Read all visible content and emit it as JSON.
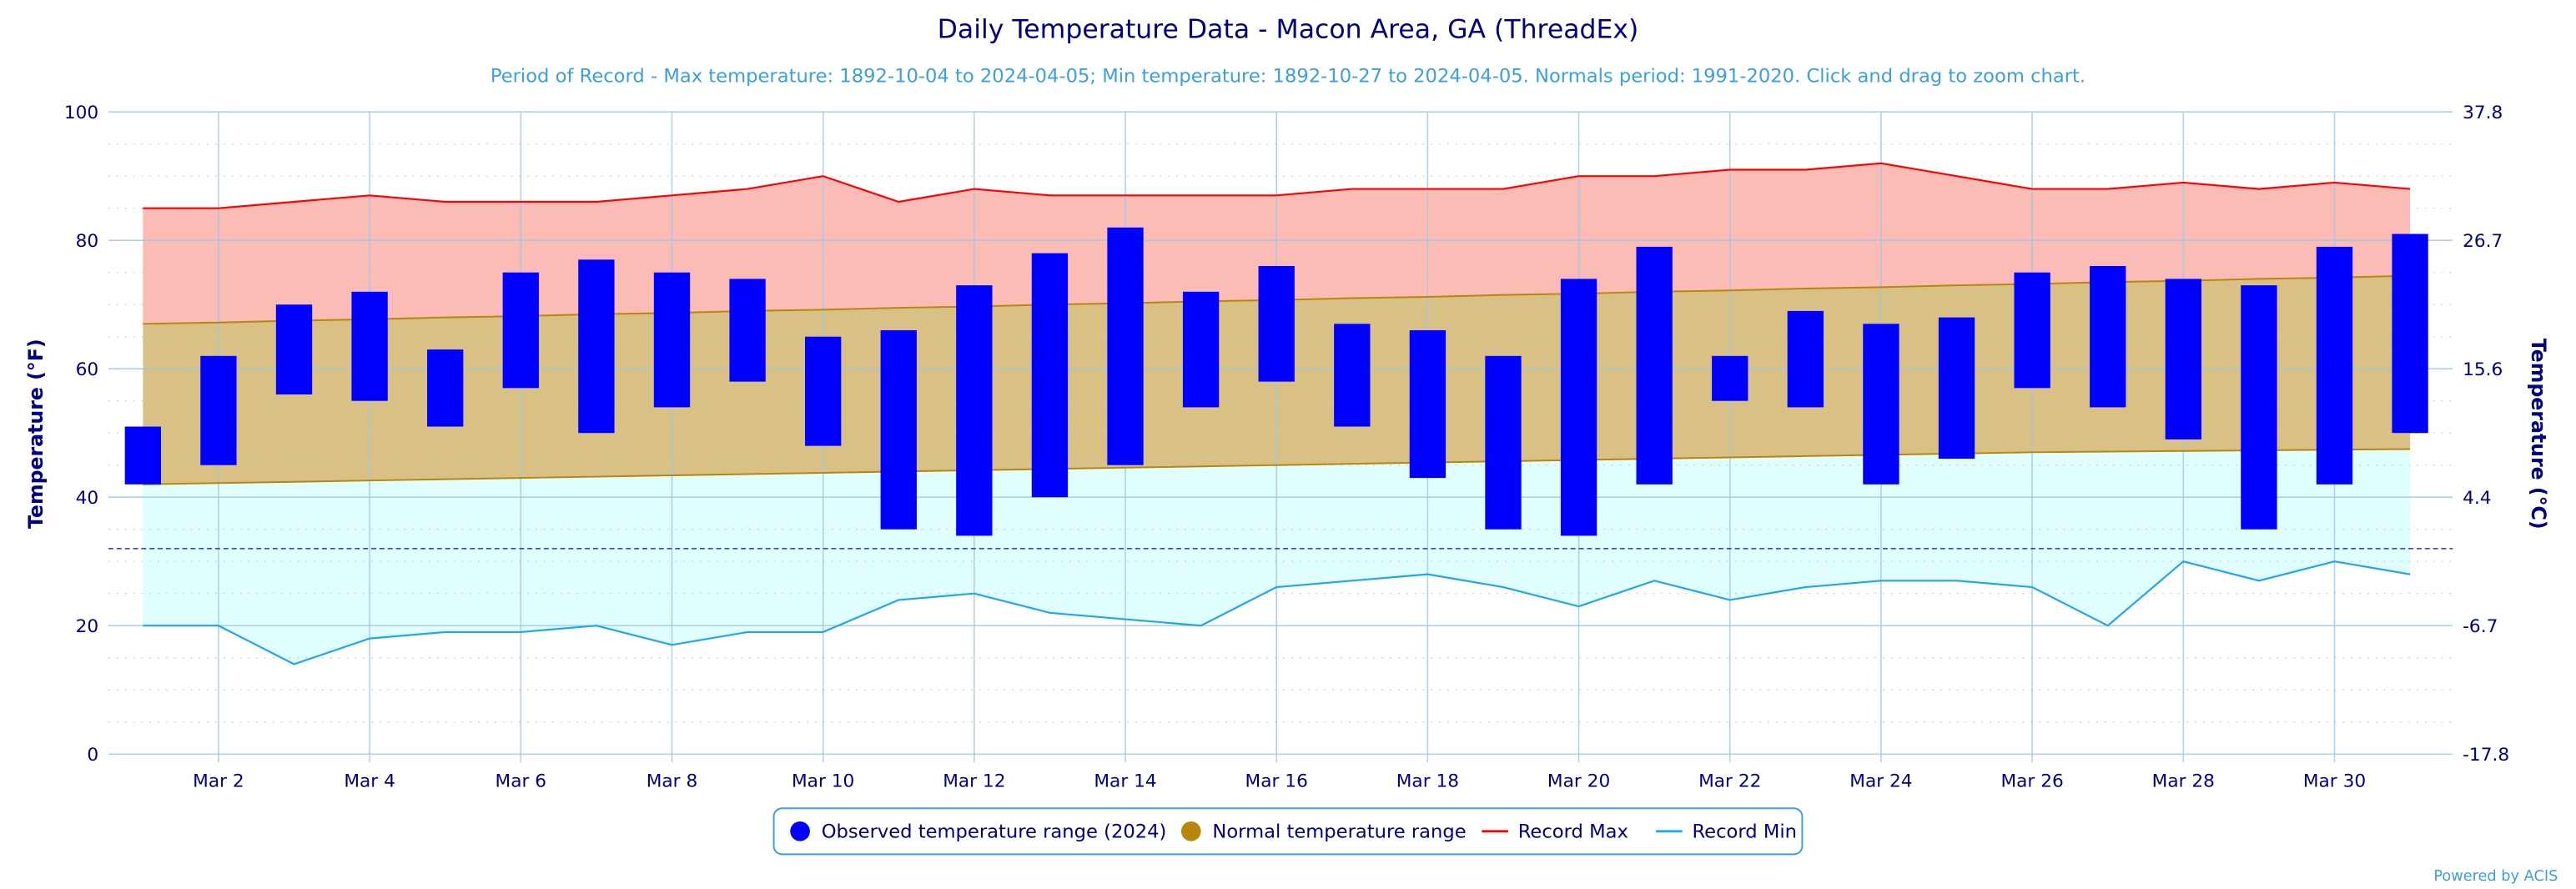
{
  "chart_data": {
    "type": "bar",
    "title": "Daily Temperature Data - Macon Area, GA (ThreadEx)",
    "subtitle": "Period of Record - Max temperature: 1892-10-04 to 2024-04-05; Min temperature: 1892-10-27 to 2024-04-05. Normals period: 1991-2020. Click and drag to zoom chart.",
    "ylabel": "Temperature (°F)",
    "y2label": "Temperature (°C)",
    "ylim": [
      0,
      100
    ],
    "yticks": [
      0,
      20,
      40,
      60,
      80,
      100
    ],
    "y2ticks": [
      "-17.8",
      "-6.7",
      "4.4",
      "15.6",
      "26.7",
      "37.8"
    ],
    "freezing_line": 32,
    "x_tick_labels": [
      "Mar 2",
      "Mar 4",
      "Mar 6",
      "Mar 8",
      "Mar 10",
      "Mar 12",
      "Mar 14",
      "Mar 16",
      "Mar 18",
      "Mar 20",
      "Mar 22",
      "Mar 24",
      "Mar 26",
      "Mar 28",
      "Mar 30"
    ],
    "x_tick_days": [
      2,
      4,
      6,
      8,
      10,
      12,
      14,
      16,
      18,
      20,
      22,
      24,
      26,
      28,
      30
    ],
    "days": [
      1,
      2,
      3,
      4,
      5,
      6,
      7,
      8,
      9,
      10,
      11,
      12,
      13,
      14,
      15,
      16,
      17,
      18,
      19,
      20,
      21,
      22,
      23,
      24,
      25,
      26,
      27,
      28,
      29,
      30,
      31
    ],
    "series": [
      {
        "name": "Observed temperature range (2024)",
        "color": "#0000ff",
        "high": [
          51,
          62,
          70,
          72,
          63,
          75,
          77,
          75,
          74,
          65,
          66,
          73,
          78,
          82,
          72,
          76,
          67,
          66,
          62,
          74,
          79,
          62,
          69,
          67,
          68,
          75,
          76,
          74,
          73,
          79,
          81
        ],
        "low": [
          42,
          45,
          56,
          55,
          51,
          57,
          50,
          54,
          58,
          48,
          35,
          34,
          40,
          45,
          54,
          58,
          51,
          43,
          35,
          34,
          42,
          55,
          54,
          42,
          46,
          57,
          54,
          49,
          35,
          42,
          50
        ]
      },
      {
        "name": "Normal temperature range",
        "color": "#b8860b",
        "high": [
          67,
          67.2,
          67.5,
          67.7,
          68,
          68.2,
          68.5,
          68.7,
          69,
          69.2,
          69.5,
          69.7,
          70,
          70.2,
          70.5,
          70.7,
          71,
          71.2,
          71.5,
          71.7,
          72,
          72.2,
          72.5,
          72.7,
          73,
          73.2,
          73.5,
          73.7,
          74,
          74.2,
          74.5
        ],
        "low": [
          42,
          42.2,
          42.4,
          42.6,
          42.8,
          43,
          43.2,
          43.4,
          43.6,
          43.8,
          44,
          44.2,
          44.4,
          44.6,
          44.8,
          45,
          45.2,
          45.4,
          45.6,
          45.8,
          46,
          46.2,
          46.4,
          46.6,
          46.8,
          47,
          47.1,
          47.2,
          47.3,
          47.4,
          47.5
        ]
      },
      {
        "name": "Record Max",
        "color": "#ff0000",
        "values": [
          85,
          85,
          86,
          87,
          86,
          86,
          86,
          87,
          88,
          90,
          86,
          88,
          87,
          87,
          87,
          87,
          88,
          88,
          88,
          90,
          90,
          91,
          91,
          92,
          90,
          88,
          88,
          89,
          88,
          89,
          88
        ]
      },
      {
        "name": "Record Min",
        "color": "#1ea7f0",
        "values": [
          20,
          20,
          14,
          18,
          19,
          19,
          20,
          17,
          19,
          19,
          24,
          25,
          22,
          21,
          20,
          26,
          27,
          28,
          26,
          23,
          27,
          24,
          26,
          27,
          27,
          26,
          20,
          30,
          27,
          30,
          28
        ]
      }
    ],
    "legend": [
      "Observed temperature range (2024)",
      "Normal temperature range",
      "Record Max",
      "Record Min"
    ],
    "legend_position": "bottom-center",
    "grid": true
  },
  "credits": "Powered by ACIS"
}
